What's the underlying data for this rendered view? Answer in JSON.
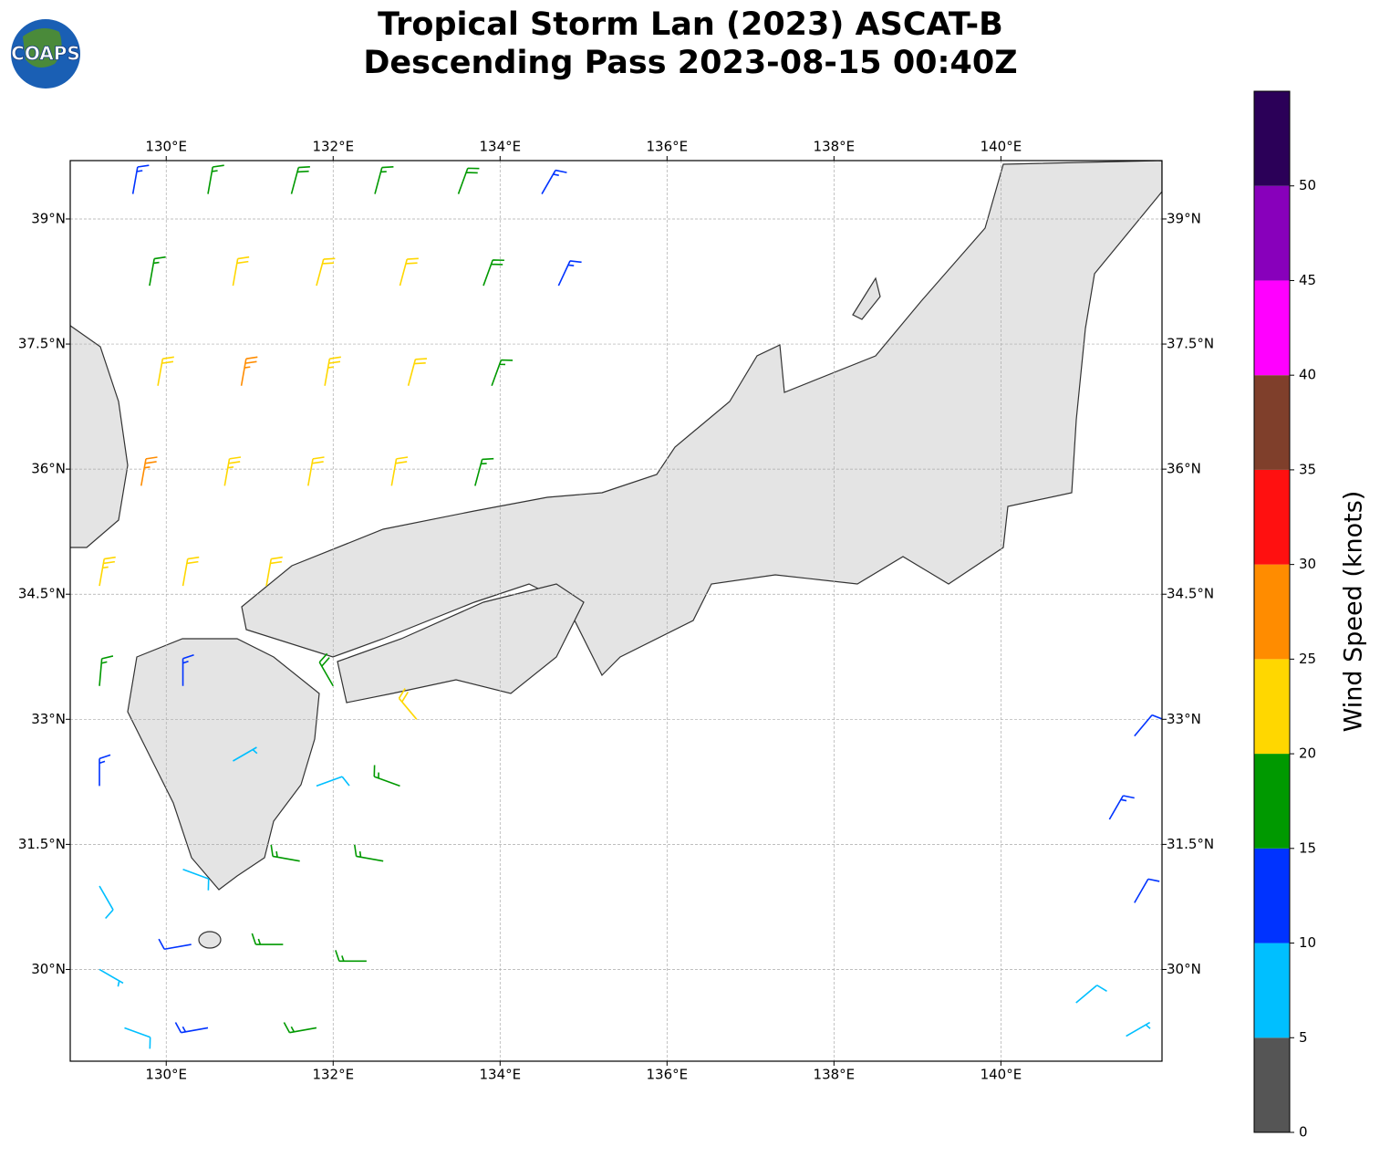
{
  "logo": "COAPS",
  "chart_data": {
    "type": "barbs",
    "title": [
      "Tropical Storm Lan (2023) ASCAT-B",
      "Descending Pass 2023-08-15 00:40Z"
    ],
    "xlim": [
      128.85,
      141.93
    ],
    "ylim": [
      28.9,
      39.7
    ],
    "xticks": [
      {
        "value": 130,
        "label": "130°E"
      },
      {
        "value": 132,
        "label": "132°E"
      },
      {
        "value": 134,
        "label": "134°E"
      },
      {
        "value": 136,
        "label": "136°E"
      },
      {
        "value": 138,
        "label": "138°E"
      },
      {
        "value": 140,
        "label": "140°E"
      }
    ],
    "yticks": [
      {
        "value": 30,
        "label": "30°N"
      },
      {
        "value": 31.5,
        "label": "31.5°N"
      },
      {
        "value": 33,
        "label": "33°N"
      },
      {
        "value": 34.5,
        "label": "34.5°N"
      },
      {
        "value": 36,
        "label": "36°N"
      },
      {
        "value": 37.5,
        "label": "37.5°N"
      },
      {
        "value": 39,
        "label": "39°N"
      }
    ],
    "grid": true,
    "barbs": {
      "lon": [
        129.6,
        130.5,
        131.5,
        132.5,
        133.5,
        134.5,
        129.8,
        130.8,
        131.8,
        132.8,
        133.8,
        134.7,
        129.9,
        130.9,
        131.9,
        132.9,
        133.9,
        129.7,
        130.7,
        131.7,
        132.7,
        133.7,
        129.2,
        130.2,
        131.2,
        129.2,
        130.2,
        132.0,
        133.0,
        129.2,
        130.8,
        131.8,
        132.8,
        129.2,
        130.2,
        131.6,
        132.6,
        129.2,
        130.3,
        131.4,
        132.4,
        129.5,
        130.5,
        131.8,
        141.6,
        141.3,
        141.6,
        140.9,
        141.5
      ],
      "lat": [
        39.3,
        39.3,
        39.3,
        39.3,
        39.3,
        39.3,
        38.2,
        38.2,
        38.2,
        38.2,
        38.2,
        38.2,
        37.0,
        37.0,
        37.0,
        37.0,
        37.0,
        35.8,
        35.8,
        35.8,
        35.8,
        35.8,
        34.6,
        34.6,
        34.6,
        33.4,
        33.4,
        33.4,
        33.0,
        32.2,
        32.5,
        32.2,
        32.2,
        31.0,
        31.2,
        31.3,
        31.3,
        30.0,
        30.3,
        30.3,
        30.1,
        29.3,
        29.3,
        29.3,
        32.8,
        31.8,
        30.8,
        29.6,
        29.2
      ],
      "speed": [
        13,
        17,
        18,
        17,
        18,
        14,
        16,
        21,
        22,
        22,
        18,
        13,
        22,
        27,
        23,
        22,
        16,
        27,
        23,
        22,
        22,
        17,
        24,
        22,
        22,
        17,
        13,
        19,
        22,
        13,
        7,
        8,
        16,
        8,
        9,
        16,
        17,
        7,
        12,
        16,
        17,
        8,
        14,
        17,
        12,
        13,
        12,
        9,
        7
      ],
      "direction": [
        10,
        10,
        15,
        15,
        20,
        30,
        10,
        10,
        15,
        15,
        20,
        25,
        10,
        10,
        10,
        15,
        20,
        10,
        10,
        10,
        10,
        15,
        10,
        10,
        10,
        5,
        0,
        330,
        320,
        0,
        60,
        70,
        290,
        150,
        110,
        280,
        280,
        120,
        260,
        270,
        270,
        110,
        260,
        260,
        40,
        30,
        30,
        50,
        60
      ]
    },
    "colorbar": {
      "label": "Wind Speed (knots)",
      "lim": [
        0,
        55
      ],
      "ticks": [
        0,
        5,
        10,
        15,
        20,
        25,
        30,
        35,
        40,
        45,
        50
      ],
      "colors": [
        "#555555",
        "#00bfff",
        "#0033ff",
        "#009900",
        "#ffd700",
        "#ff8c00",
        "#ff1010",
        "#7f3f2b",
        "#ff00ff",
        "#8800bb",
        "#2b0058"
      ]
    }
  }
}
